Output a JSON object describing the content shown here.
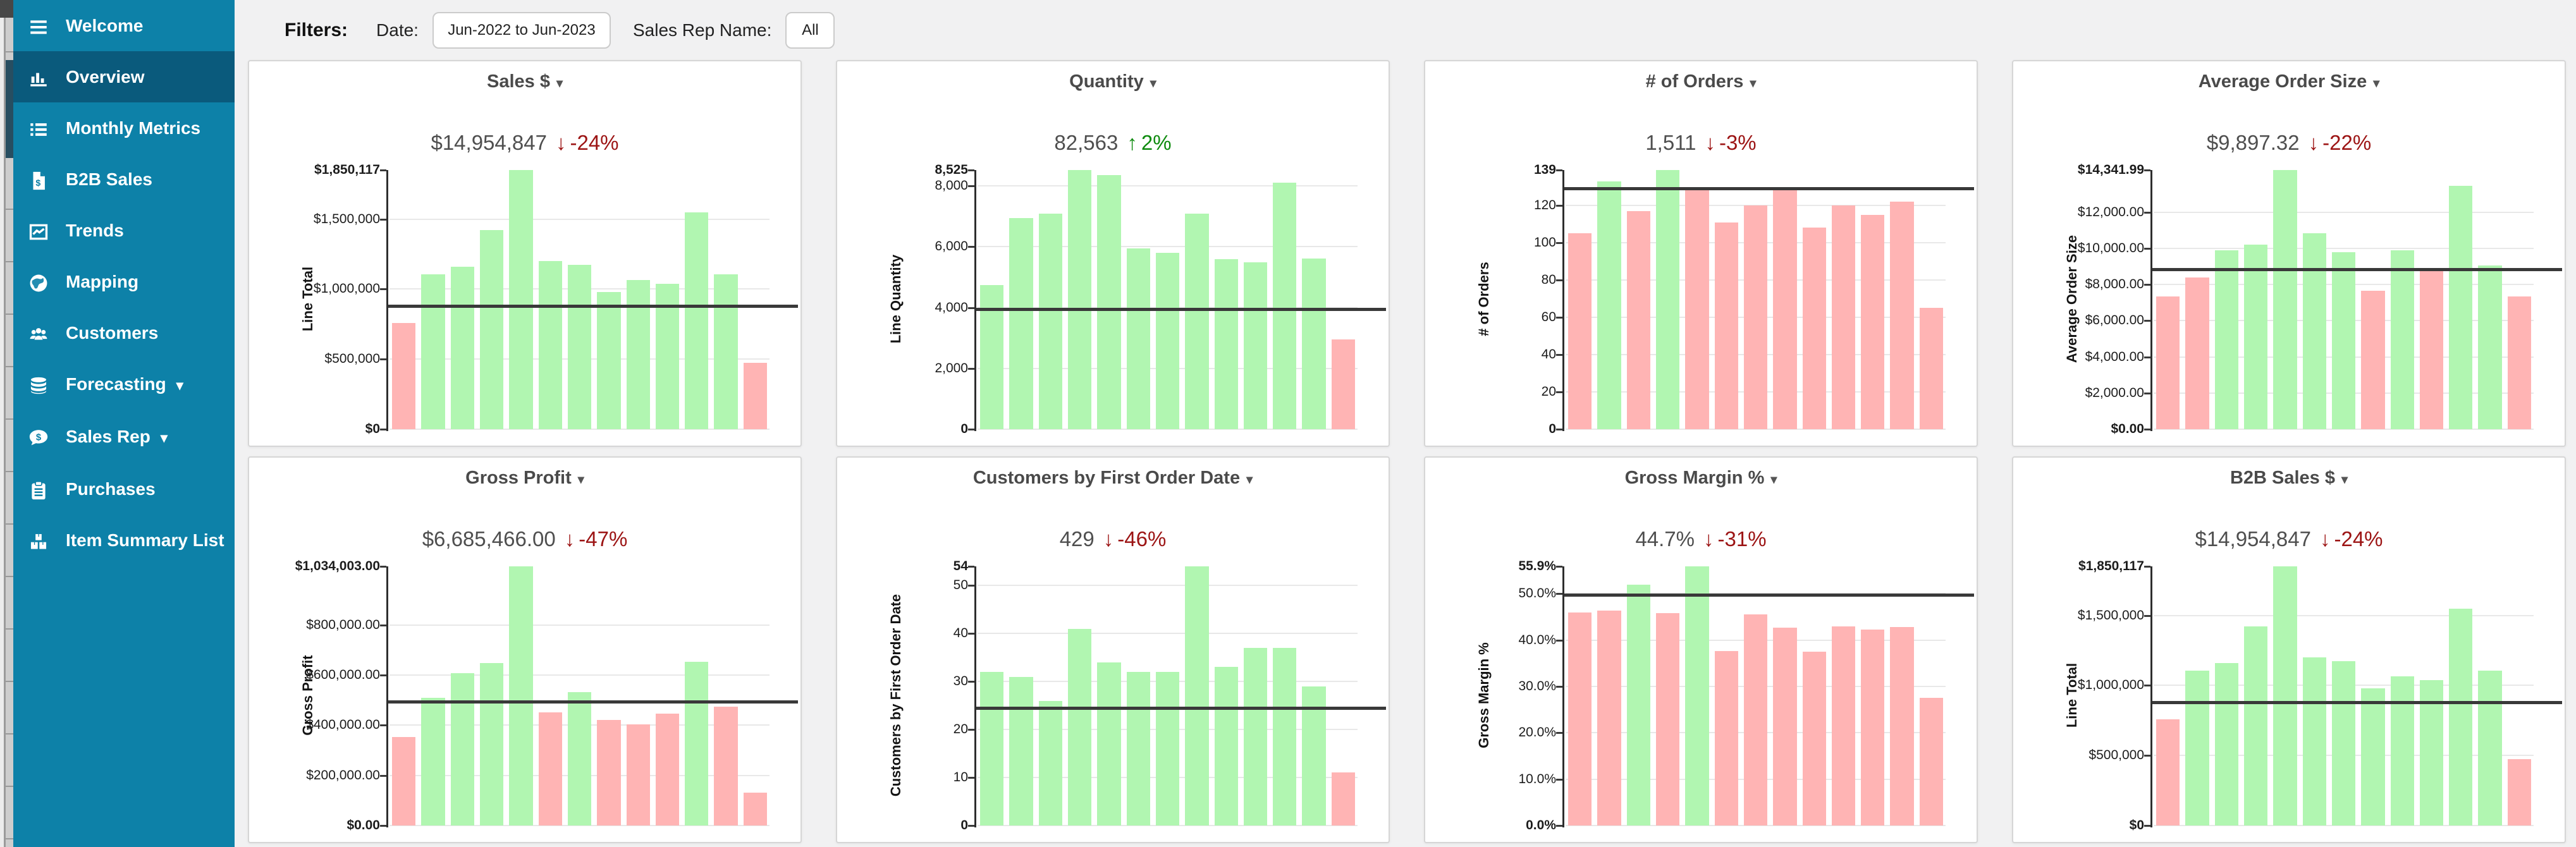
{
  "colors": {
    "sidebar": "#0d81a8",
    "sidebar_active": "#0a5a7c",
    "bar_green": "#b1f6b1",
    "bar_red": "#ffb4b4",
    "delta_up": "#0f8b0f",
    "delta_down": "#9c1414",
    "reference_line": "#393939"
  },
  "sidebar": {
    "items": [
      {
        "icon": "menu-icon",
        "label": "Welcome",
        "active": false,
        "caret": false
      },
      {
        "icon": "chart-column-icon",
        "label": "Overview",
        "active": true,
        "caret": false
      },
      {
        "icon": "list-icon",
        "label": "Monthly Metrics",
        "active": false,
        "caret": false
      },
      {
        "icon": "invoice-dollar-icon",
        "label": "B2B Sales",
        "active": false,
        "caret": false
      },
      {
        "icon": "chart-line-icon",
        "label": "Trends",
        "active": false,
        "caret": false
      },
      {
        "icon": "globe-icon",
        "label": "Mapping",
        "active": false,
        "caret": false
      },
      {
        "icon": "users-icon",
        "label": "Customers",
        "active": false,
        "caret": false
      },
      {
        "icon": "database-icon",
        "label": "Forecasting",
        "active": false,
        "caret": true
      },
      {
        "icon": "comment-dollar-icon",
        "label": "Sales Rep",
        "active": false,
        "caret": true
      },
      {
        "icon": "clipboard-icon",
        "label": "Purchases",
        "active": false,
        "caret": false
      },
      {
        "icon": "boxes-icon",
        "label": "Item Summary List",
        "active": false,
        "caret": false
      }
    ]
  },
  "filters": {
    "label": "Filters:",
    "date_label": "Date:",
    "date_value": "Jun-2022 to Jun-2023",
    "rep_label": "Sales Rep Name:",
    "rep_value": "All"
  },
  "chart_data": [
    {
      "type": "bar",
      "title": "Sales $",
      "kpi": "$14,954,847",
      "delta": {
        "direction": "down",
        "pct": "-24%"
      },
      "ylabel": "Line Total",
      "ylim": [
        0,
        1850117
      ],
      "ref_line": 880000,
      "yticks": [
        {
          "label": "$1,850,117",
          "v": 1850117
        },
        {
          "label": "$1,500,000",
          "v": 1500000
        },
        {
          "label": "$1,000,000",
          "v": 1000000
        },
        {
          "label": "$500,000",
          "v": 500000
        },
        {
          "label": "$0",
          "v": 0
        }
      ],
      "values": [
        760000,
        1105000,
        1160000,
        1420000,
        1850117,
        1200000,
        1175000,
        980000,
        1065000,
        1040000,
        1550000,
        1105000,
        475000
      ],
      "bar_colors": "rgggggggggggr"
    },
    {
      "type": "bar",
      "title": "Quantity",
      "kpi": "82,563",
      "delta": {
        "direction": "up",
        "pct": "2%"
      },
      "ylabel": "Line Quantity",
      "ylim": [
        0,
        8525
      ],
      "ref_line": 3950,
      "yticks": [
        {
          "label": "8,525",
          "v": 8525
        },
        {
          "label": "8,000",
          "v": 8000
        },
        {
          "label": "6,000",
          "v": 6000
        },
        {
          "label": "4,000",
          "v": 4000
        },
        {
          "label": "2,000",
          "v": 2000
        },
        {
          "label": "0",
          "v": 0
        }
      ],
      "values": [
        4750,
        6950,
        7080,
        8525,
        8350,
        5950,
        5800,
        7100,
        5600,
        5480,
        8100,
        5620,
        2950
      ],
      "bar_colors": "ggggggggggggr"
    },
    {
      "type": "bar",
      "title": "# of Orders",
      "kpi": "1,511",
      "delta": {
        "direction": "down",
        "pct": "-3%"
      },
      "ylabel": "# of Orders",
      "ylim": [
        0,
        139
      ],
      "ref_line": 129,
      "yticks": [
        {
          "label": "139",
          "v": 139
        },
        {
          "label": "120",
          "v": 120
        },
        {
          "label": "100",
          "v": 100
        },
        {
          "label": "80",
          "v": 80
        },
        {
          "label": "60",
          "v": 60
        },
        {
          "label": "40",
          "v": 40
        },
        {
          "label": "20",
          "v": 20
        },
        {
          "label": "0",
          "v": 0
        }
      ],
      "values": [
        105,
        133,
        117,
        139,
        128,
        111,
        120,
        128,
        108,
        120,
        115,
        122,
        65
      ],
      "bar_colors": "rgrgrrrrrrrrr"
    },
    {
      "type": "bar",
      "title": "Average Order Size",
      "kpi": "$9,897.32",
      "delta": {
        "direction": "down",
        "pct": "-22%"
      },
      "ylabel": "Average Order Size",
      "ylim": [
        0,
        14341.99
      ],
      "ref_line": 8850,
      "yticks": [
        {
          "label": "$14,341.99",
          "v": 14341.99
        },
        {
          "label": "$12,000.00",
          "v": 12000
        },
        {
          "label": "$10,000.00",
          "v": 10000
        },
        {
          "label": "$8,000.00",
          "v": 8000
        },
        {
          "label": "$6,000.00",
          "v": 6000
        },
        {
          "label": "$4,000.00",
          "v": 4000
        },
        {
          "label": "$2,000.00",
          "v": 2000
        },
        {
          "label": "$0.00",
          "v": 0
        }
      ],
      "values": [
        7350,
        8400,
        9900,
        10220,
        14341.99,
        10850,
        9800,
        7650,
        9900,
        8750,
        13450,
        9050,
        7350
      ],
      "bar_colors": "rrgggggrgrggr"
    },
    {
      "type": "bar",
      "title": "Gross Profit",
      "kpi": "$6,685,466.00",
      "delta": {
        "direction": "down",
        "pct": "-47%"
      },
      "ylabel": "Gross Profit",
      "ylim": [
        0,
        1034003
      ],
      "ref_line": 495000,
      "yticks": [
        {
          "label": "$1,034,003.00",
          "v": 1034003
        },
        {
          "label": "$800,000.00",
          "v": 800000
        },
        {
          "label": "$600,000.00",
          "v": 600000
        },
        {
          "label": "$400,000.00",
          "v": 400000
        },
        {
          "label": "$200,000.00",
          "v": 200000
        },
        {
          "label": "$0.00",
          "v": 0
        }
      ],
      "values": [
        352000,
        510000,
        607000,
        648000,
        1034003,
        452000,
        533000,
        420000,
        403000,
        447000,
        652000,
        475000,
        130000
      ],
      "bar_colors": "rggggrgrrrgrr"
    },
    {
      "type": "bar",
      "title": "Customers by First Order Date",
      "kpi": "429",
      "delta": {
        "direction": "down",
        "pct": "-46%"
      },
      "ylabel": "Customers by First Order Date",
      "ylim": [
        0,
        54
      ],
      "ref_line": 24.5,
      "yticks": [
        {
          "label": "54",
          "v": 54
        },
        {
          "label": "50",
          "v": 50
        },
        {
          "label": "40",
          "v": 40
        },
        {
          "label": "30",
          "v": 30
        },
        {
          "label": "20",
          "v": 20
        },
        {
          "label": "10",
          "v": 10
        },
        {
          "label": "0",
          "v": 0
        }
      ],
      "values": [
        32,
        31,
        26,
        41,
        34,
        32,
        32,
        54,
        33,
        37,
        37,
        29,
        11
      ],
      "bar_colors": "ggggggggggggr"
    },
    {
      "type": "bar",
      "title": "Gross Margin %",
      "kpi": "44.7%",
      "delta": {
        "direction": "down",
        "pct": "-31%"
      },
      "ylabel": "Gross Margin %",
      "ylim": [
        0,
        55.9
      ],
      "ref_line": 49.7,
      "yticks": [
        {
          "label": "55.9%",
          "v": 55.9
        },
        {
          "label": "50.0%",
          "v": 50
        },
        {
          "label": "40.0%",
          "v": 40
        },
        {
          "label": "30.0%",
          "v": 30
        },
        {
          "label": "20.0%",
          "v": 20
        },
        {
          "label": "10.0%",
          "v": 10
        },
        {
          "label": "0.0%",
          "v": 0
        }
      ],
      "values": [
        46.0,
        46.3,
        52.0,
        45.8,
        55.9,
        37.6,
        45.5,
        42.7,
        37.5,
        43.0,
        42.2,
        42.8,
        27.5
      ],
      "bar_colors": "rrgrgrrrrrrrr"
    },
    {
      "type": "bar",
      "title": "B2B Sales $",
      "kpi": "$14,954,847",
      "delta": {
        "direction": "down",
        "pct": "-24%"
      },
      "ylabel": "Line Total",
      "ylim": [
        0,
        1850117
      ],
      "ref_line": 880000,
      "yticks": [
        {
          "label": "$1,850,117",
          "v": 1850117
        },
        {
          "label": "$1,500,000",
          "v": 1500000
        },
        {
          "label": "$1,000,000",
          "v": 1000000
        },
        {
          "label": "$500,000",
          "v": 500000
        },
        {
          "label": "$0",
          "v": 0
        }
      ],
      "values": [
        760000,
        1105000,
        1160000,
        1420000,
        1850117,
        1200000,
        1175000,
        980000,
        1065000,
        1040000,
        1550000,
        1105000,
        475000
      ],
      "bar_colors": "rgggggggggggr"
    }
  ]
}
